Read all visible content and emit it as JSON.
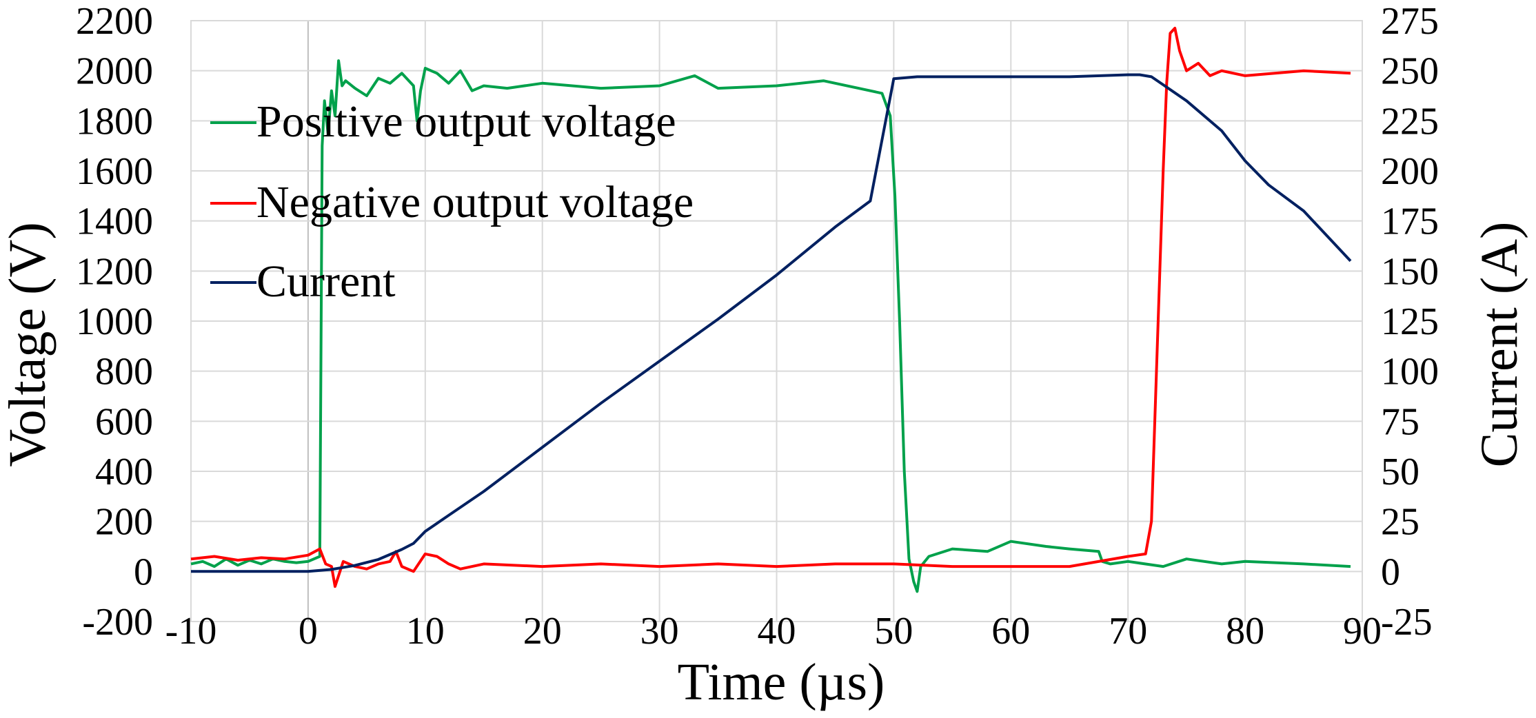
{
  "chart_data": {
    "type": "line",
    "title": "",
    "xlabel": "Time (µs)",
    "ylabel": "Voltage  (V)",
    "y2label": "Current (A)",
    "xlim": [
      -10,
      90
    ],
    "ylim": [
      -200,
      2200
    ],
    "y2lim": [
      -25,
      275
    ],
    "xticks": [
      -10,
      0,
      10,
      20,
      30,
      40,
      50,
      60,
      70,
      80,
      90
    ],
    "yticks": [
      -200,
      0,
      200,
      400,
      600,
      800,
      1000,
      1200,
      1400,
      1600,
      1800,
      2000,
      2200
    ],
    "y2ticks": [
      -25,
      0,
      25,
      50,
      75,
      100,
      125,
      150,
      175,
      200,
      225,
      250,
      275
    ],
    "grid": true,
    "legend": "upper-left inside",
    "series": [
      {
        "name": "Positive output voltage",
        "color": "#00a14b",
        "axis": "left",
        "x": [
          -10,
          -9,
          -8,
          -7,
          -6,
          -5,
          -4,
          -3,
          -2,
          -1,
          0,
          1.0,
          1.2,
          1.4,
          1.7,
          2.0,
          2.3,
          2.6,
          2.9,
          3.2,
          4,
          5,
          6,
          7,
          8,
          9,
          9.3,
          9.6,
          10,
          11,
          12,
          13,
          14,
          15,
          17,
          20,
          25,
          30,
          33,
          35,
          40,
          44,
          47,
          49,
          49.7,
          50.1,
          50.5,
          50.9,
          51.3,
          51.7,
          52.0,
          52.3,
          53,
          55,
          58,
          60,
          63,
          65,
          67.5,
          67.8,
          68.5,
          70,
          73,
          75,
          78,
          80,
          85,
          89
        ],
        "y": [
          30,
          40,
          20,
          50,
          25,
          45,
          30,
          50,
          40,
          35,
          40,
          60,
          1700,
          1880,
          1750,
          1920,
          1820,
          2040,
          1940,
          1960,
          1930,
          1900,
          1970,
          1950,
          1990,
          1940,
          1800,
          1920,
          2010,
          1990,
          1950,
          2000,
          1920,
          1940,
          1930,
          1950,
          1930,
          1940,
          1980,
          1930,
          1940,
          1960,
          1930,
          1910,
          1820,
          1500,
          1000,
          400,
          50,
          -40,
          -80,
          20,
          60,
          90,
          80,
          120,
          100,
          90,
          80,
          40,
          30,
          40,
          20,
          50,
          30,
          40,
          30,
          20
        ]
      },
      {
        "name": "Negative output voltage",
        "color": "#ff0000",
        "axis": "left",
        "x": [
          -10,
          -8,
          -6,
          -4,
          -2,
          0,
          1,
          1.5,
          2,
          2.3,
          3,
          4,
          5,
          6,
          7,
          7.5,
          8,
          9,
          10,
          11,
          12,
          13,
          15,
          20,
          25,
          30,
          35,
          40,
          45,
          50,
          55,
          60,
          65,
          70,
          71.5,
          72.0,
          72.5,
          73.0,
          73.3,
          73.6,
          74.0,
          74.4,
          75,
          76,
          77,
          78,
          80,
          85,
          89
        ],
        "y": [
          50,
          60,
          45,
          55,
          50,
          65,
          90,
          30,
          20,
          -60,
          40,
          20,
          10,
          30,
          40,
          80,
          20,
          0,
          70,
          60,
          30,
          10,
          30,
          20,
          30,
          20,
          30,
          20,
          30,
          30,
          20,
          20,
          20,
          60,
          70,
          200,
          900,
          1600,
          1950,
          2150,
          2170,
          2080,
          2000,
          2030,
          1980,
          2000,
          1980,
          2000,
          1990
        ]
      },
      {
        "name": "Current",
        "color": "#002060",
        "axis": "right",
        "x": [
          -10,
          -5,
          0,
          2,
          4,
          6,
          8,
          9,
          10,
          12,
          15,
          20,
          25,
          30,
          35,
          40,
          45,
          48,
          50,
          52,
          55,
          60,
          65,
          70,
          71,
          72,
          73,
          75,
          78,
          80,
          82,
          85,
          89
        ],
        "y": [
          0,
          0,
          0,
          1,
          3,
          6,
          11,
          14,
          20,
          28,
          40,
          62,
          84,
          105,
          126,
          148,
          172,
          185,
          246,
          247,
          247,
          247,
          247,
          248,
          248,
          247,
          243,
          235,
          220,
          205,
          193,
          180,
          155
        ]
      }
    ]
  }
}
